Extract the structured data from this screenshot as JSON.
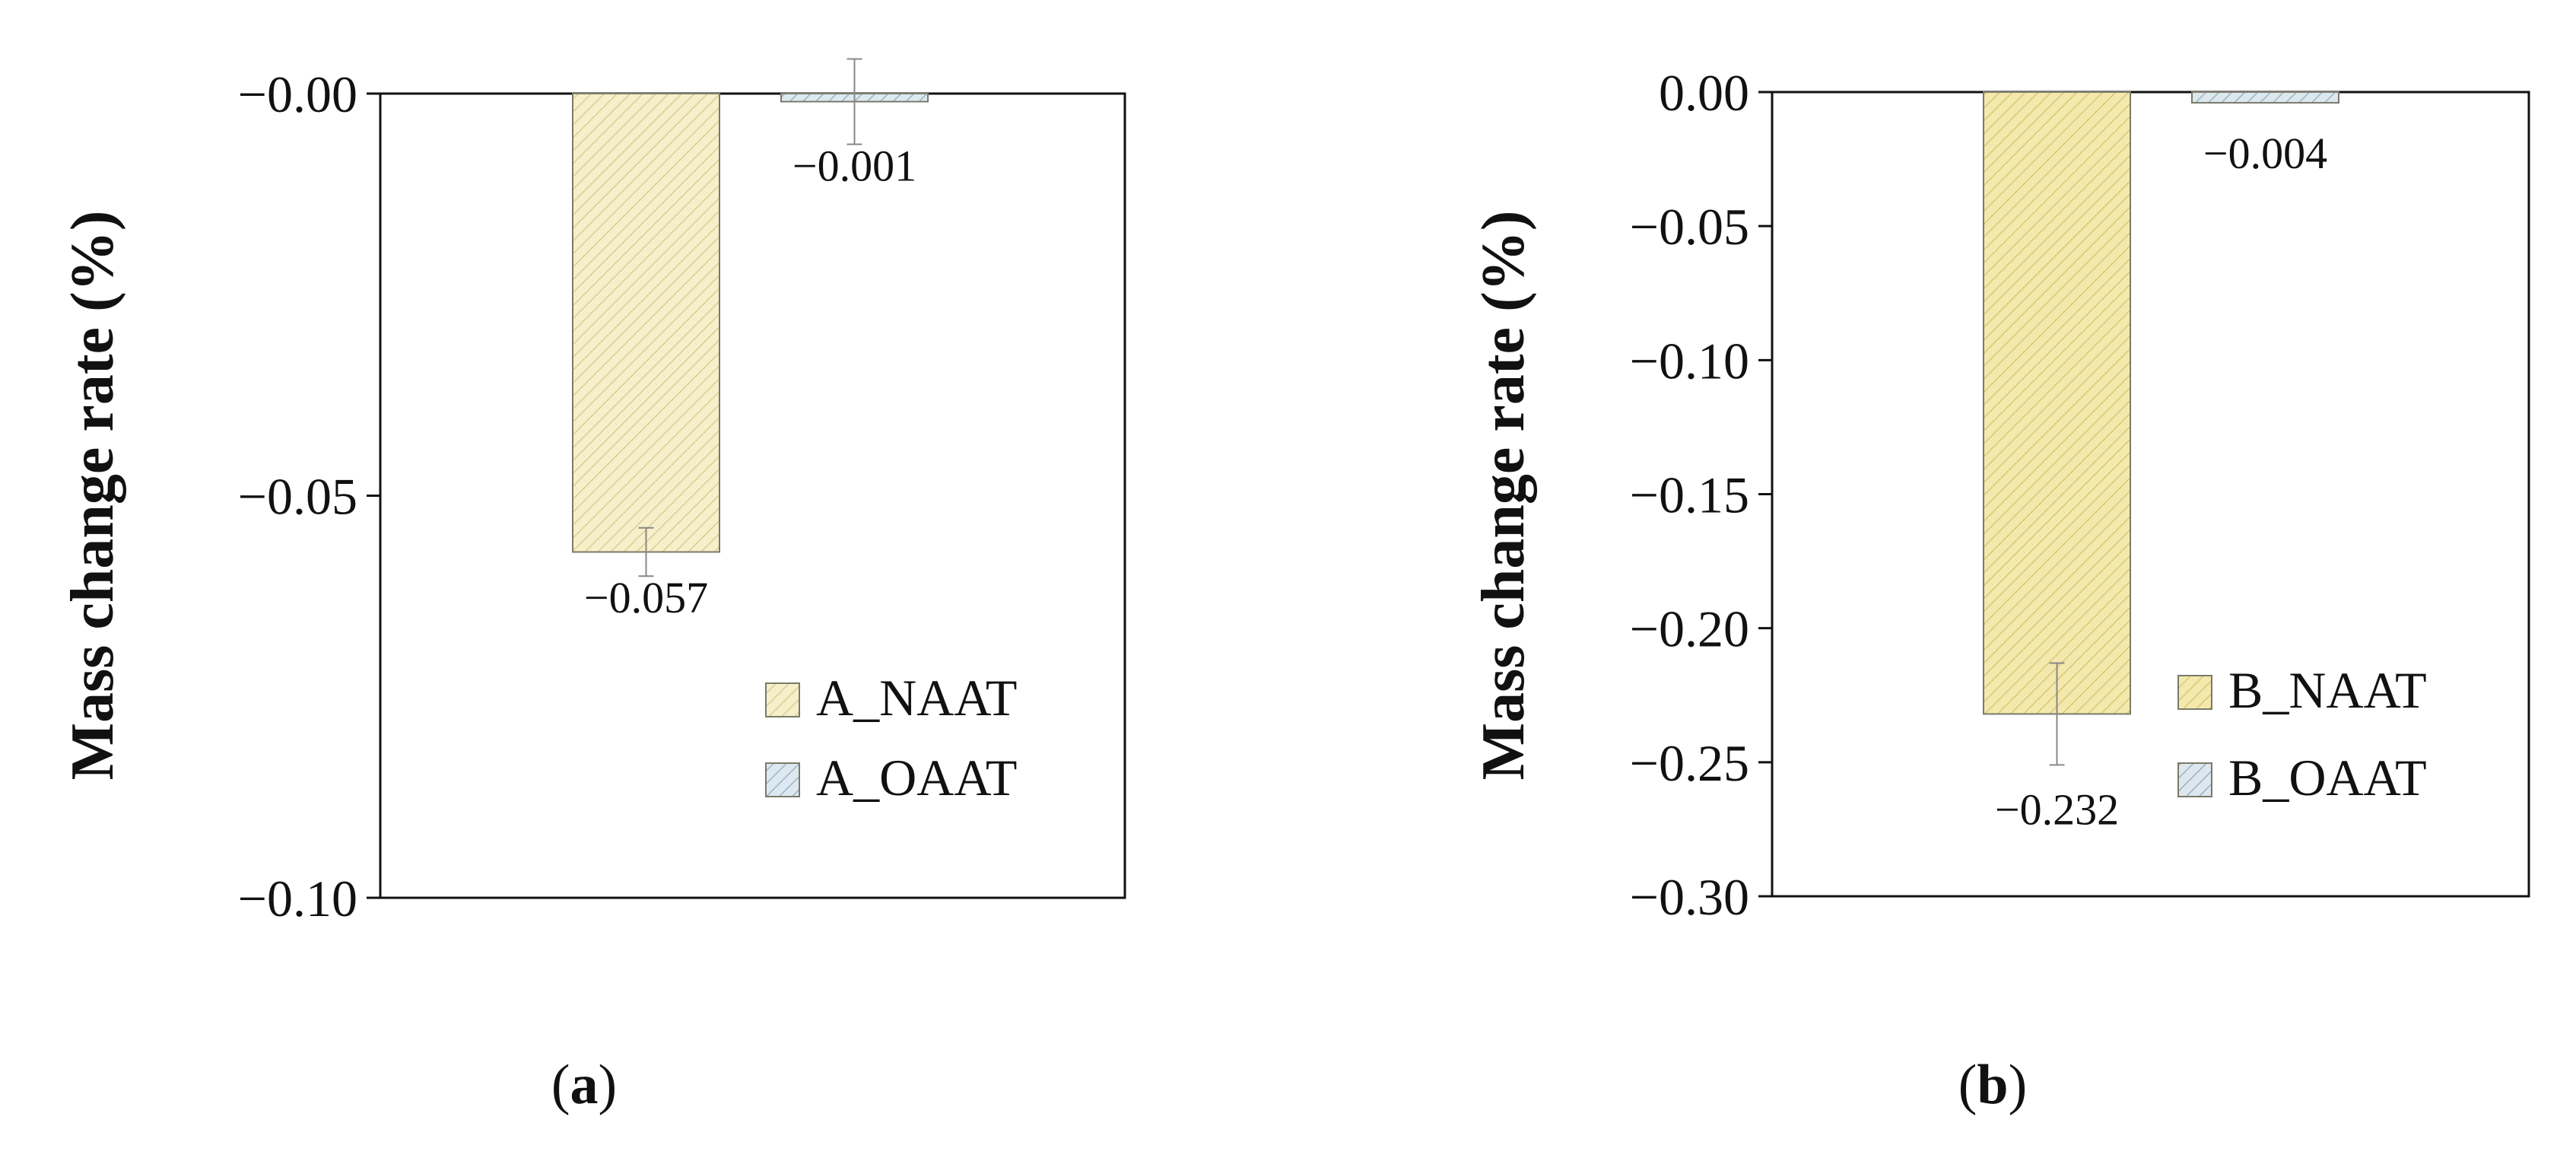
{
  "chart_data": [
    {
      "type": "bar",
      "panel_label": "a",
      "ylabel": "Mass change rate (%)",
      "ylim": [
        -0.1,
        0.0
      ],
      "yticks": [
        {
          "value": 0.0,
          "label": "−0.00"
        },
        {
          "value": -0.05,
          "label": "−0.05"
        },
        {
          "value": -0.1,
          "label": "−0.10"
        }
      ],
      "grid": false,
      "legend_position": "bottom-right",
      "series": [
        {
          "name": "A_NAAT",
          "value": -0.057,
          "error": 0.003,
          "label": "−0.057",
          "color": "#f6efc9",
          "hatch": "#d8cf94"
        },
        {
          "name": "A_OAAT",
          "value": -0.001,
          "error": 0.0053,
          "label": "−0.001",
          "color": "#dde9f0",
          "hatch": "#9db4c4"
        }
      ]
    },
    {
      "type": "bar",
      "panel_label": "b",
      "ylabel": "Mass change rate (%)",
      "ylim": [
        -0.3,
        0.0
      ],
      "yticks": [
        {
          "value": 0.0,
          "label": "0.00"
        },
        {
          "value": -0.05,
          "label": "−0.05"
        },
        {
          "value": -0.1,
          "label": "−0.10"
        },
        {
          "value": -0.15,
          "label": "−0.15"
        },
        {
          "value": -0.2,
          "label": "−0.20"
        },
        {
          "value": -0.25,
          "label": "−0.25"
        },
        {
          "value": -0.3,
          "label": "−0.30"
        }
      ],
      "grid": false,
      "legend_position": "bottom-right",
      "series": [
        {
          "name": "B_NAAT",
          "value": -0.232,
          "error": 0.019,
          "label": "−0.232",
          "color": "#f3e9ad",
          "hatch": "#d8c876"
        },
        {
          "name": "B_OAAT",
          "value": -0.004,
          "error": 0.0,
          "label": "−0.004",
          "color": "#dce7ee",
          "hatch": "#9db4c4"
        }
      ]
    }
  ]
}
